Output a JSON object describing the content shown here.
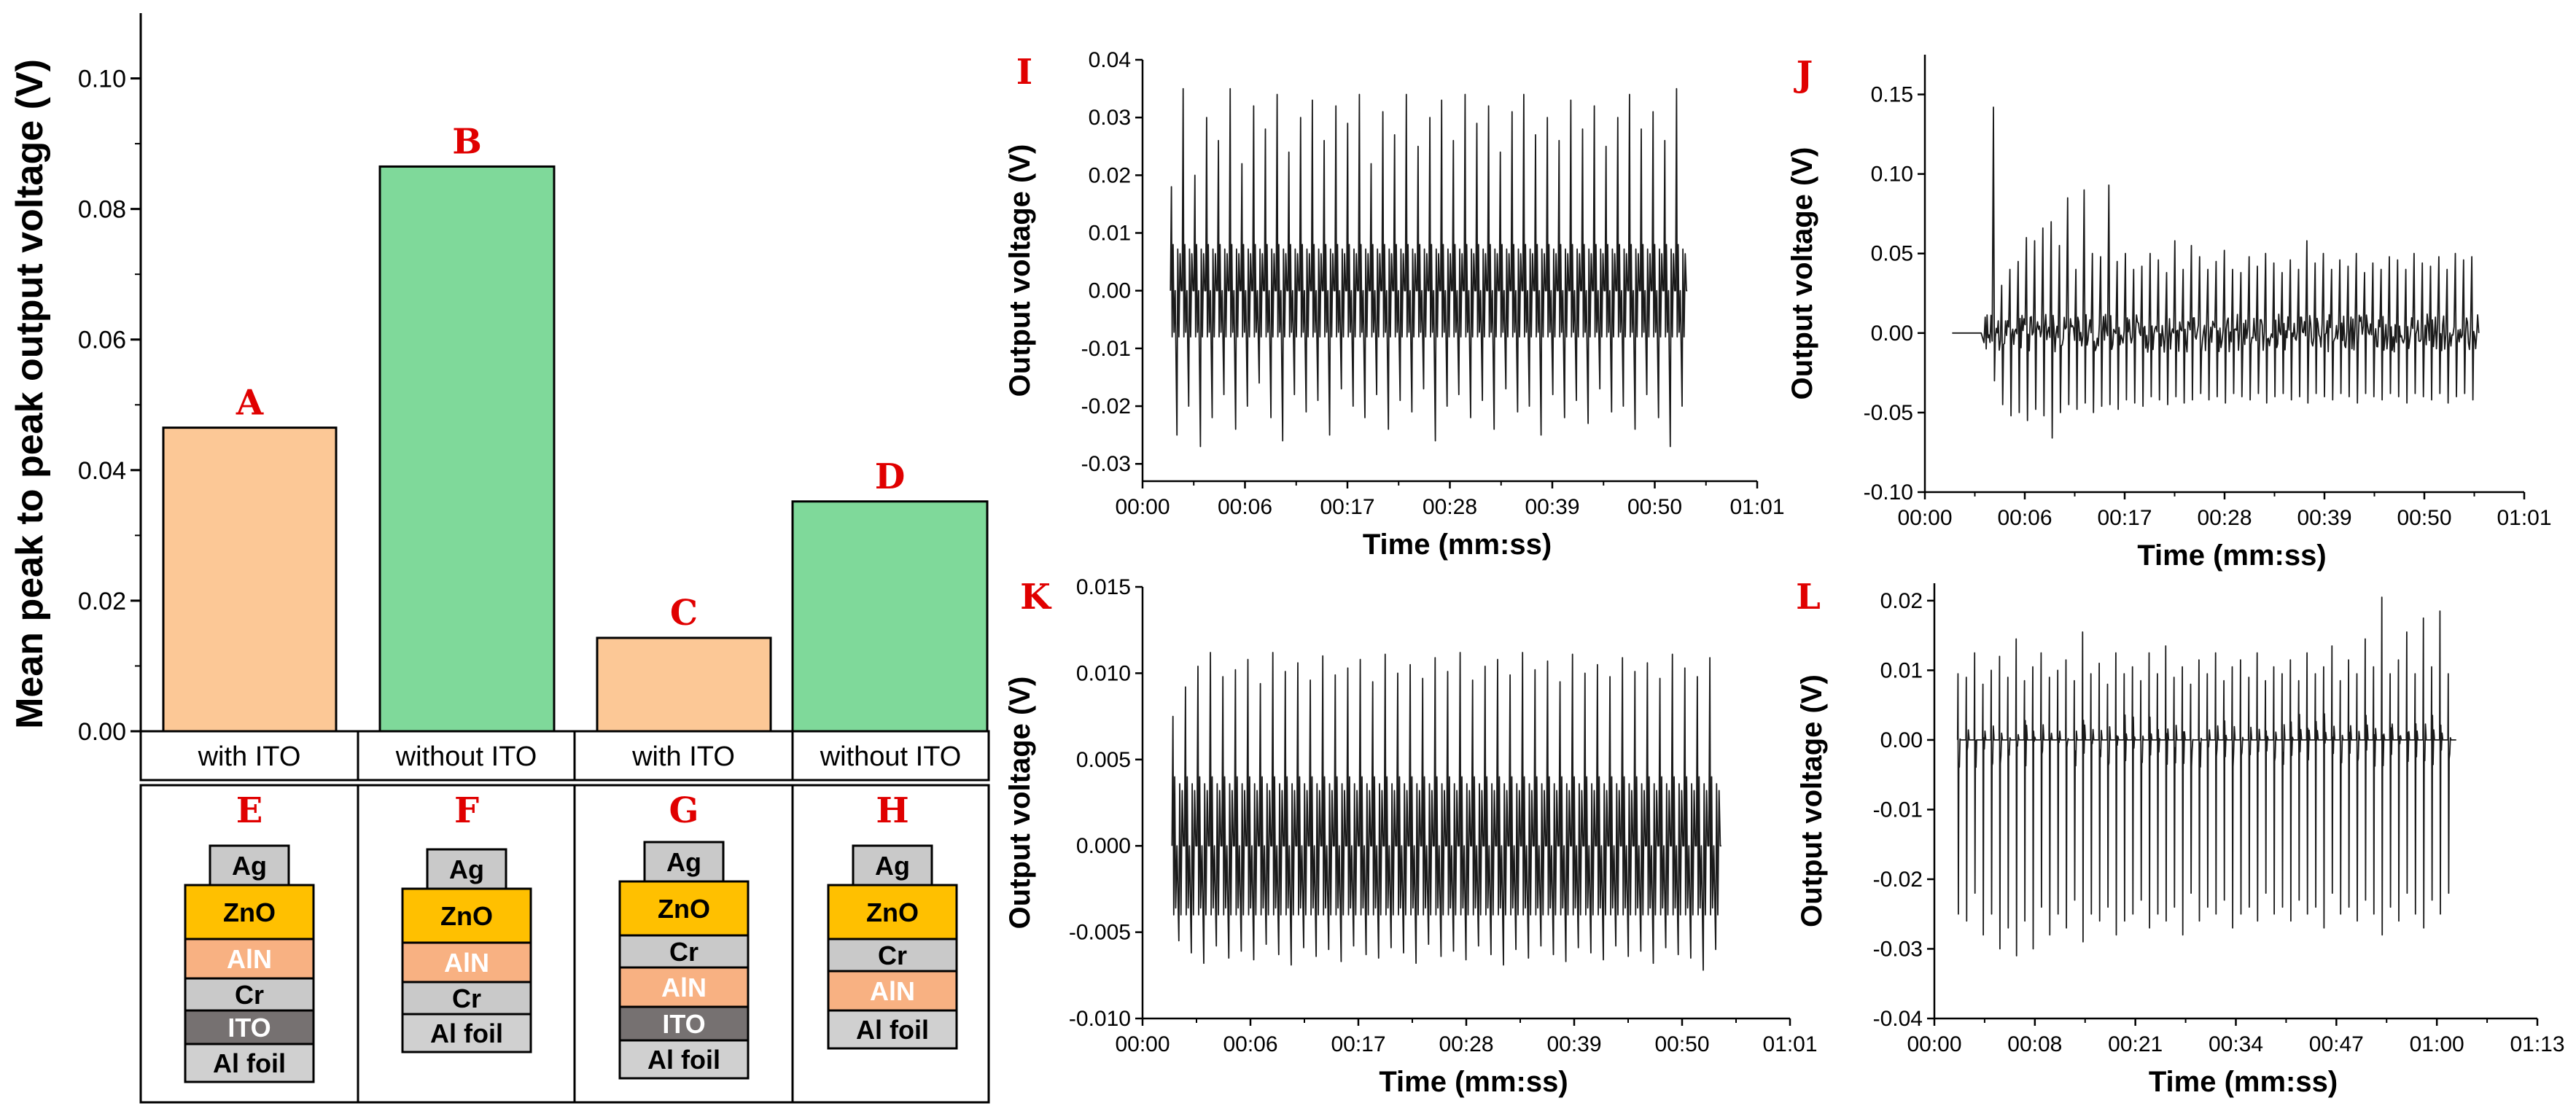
{
  "colors": {
    "orange": "#fcc896",
    "green": "#7fd99a",
    "red_label": "#e00000",
    "layer_Ag": "#c9c9c9",
    "layer_ZnO": "#ffc000",
    "layer_AlN": "#f8b182",
    "layer_Cr": "#c9c9c9",
    "layer_ITO": "#767171",
    "layer_Alfoil": "#d0d0d0",
    "signal": "#1a1a1a"
  },
  "chart_data": [
    {
      "id": "bar",
      "type": "bar",
      "title": "",
      "ylabel": "Mean peak to peak output voltage (V)",
      "xlabel": "",
      "ylim": [
        0,
        0.11
      ],
      "yticks": [
        "0.00",
        "0.02",
        "0.04",
        "0.06",
        "0.08",
        "0.10"
      ],
      "categories": [
        "with ITO",
        "without ITO",
        "with ITO",
        "without ITO"
      ],
      "values": [
        0.0465,
        0.0865,
        0.0143,
        0.0352
      ],
      "bar_letters": [
        "A",
        "B",
        "C",
        "D"
      ],
      "bar_colors": [
        "orange",
        "green",
        "orange",
        "green"
      ]
    },
    {
      "id": "I",
      "type": "line",
      "letter": "I",
      "xlabel": "Time (mm:ss)",
      "ylabel": "Output voltage (V)",
      "xticks": [
        "00:00",
        "00:06",
        "00:17",
        "00:28",
        "00:39",
        "00:50",
        "01:01"
      ],
      "yticks": [
        "-0.03",
        "-0.02",
        "-0.01",
        "0.00",
        "0.01",
        "0.02",
        "0.03",
        "0.04"
      ],
      "ylim": [
        -0.033,
        0.04
      ],
      "x_start": 3.0,
      "x_end": 58.5,
      "pulse_count": 44,
      "peaks_max": [
        0.018,
        0.035,
        0.02,
        0.03,
        0.026,
        0.035,
        0.022,
        0.032,
        0.028,
        0.034,
        0.024,
        0.03,
        0.033,
        0.026,
        0.032,
        0.029,
        0.034,
        0.022,
        0.031,
        0.027,
        0.034,
        0.025,
        0.03,
        0.033,
        0.026,
        0.034,
        0.029,
        0.032,
        0.024,
        0.031,
        0.034,
        0.027,
        0.03,
        0.026,
        0.033,
        0.028,
        0.032,
        0.025,
        0.03,
        0.034,
        0.028,
        0.031,
        0.026,
        0.035
      ],
      "peaks_min": [
        -0.025,
        -0.02,
        -0.027,
        -0.022,
        -0.018,
        -0.024,
        -0.02,
        -0.016,
        -0.022,
        -0.026,
        -0.018,
        -0.021,
        -0.019,
        -0.025,
        -0.017,
        -0.02,
        -0.022,
        -0.018,
        -0.024,
        -0.019,
        -0.021,
        -0.017,
        -0.026,
        -0.02,
        -0.018,
        -0.022,
        -0.019,
        -0.024,
        -0.017,
        -0.021,
        -0.02,
        -0.025,
        -0.018,
        -0.022,
        -0.019,
        -0.023,
        -0.017,
        -0.021,
        -0.02,
        -0.024,
        -0.018,
        -0.022,
        -0.027,
        -0.02
      ],
      "baseline": 0.0,
      "upper_band": 0.008,
      "lower_band": -0.008,
      "amplitude_drift": 0.0
    },
    {
      "id": "J",
      "type": "line",
      "letter": "J",
      "xlabel": "Time (mm:ss)",
      "ylabel": "Output voltage (V)",
      "xticks": [
        "00:00",
        "00:06",
        "00:17",
        "00:28",
        "00:39",
        "00:50",
        "01:01"
      ],
      "yticks": [
        "-0.10",
        "-0.05",
        "0.00",
        "0.05",
        "0.10",
        "0.15"
      ],
      "ylim": [
        -0.1,
        0.175
      ],
      "x_start": 3.0,
      "x_end": 61.0,
      "onset": 6.5,
      "pulse_count": 60,
      "peaks_max": [
        0.01,
        0.142,
        0.03,
        0.04,
        0.045,
        0.06,
        0.058,
        0.066,
        0.07,
        0.055,
        0.085,
        0.04,
        0.09,
        0.05,
        0.048,
        0.093,
        0.045,
        0.05,
        0.04,
        0.042,
        0.05,
        0.046,
        0.038,
        0.058,
        0.04,
        0.055,
        0.048,
        0.04,
        0.045,
        0.052,
        0.04,
        0.038,
        0.048,
        0.042,
        0.05,
        0.044,
        0.038,
        0.046,
        0.04,
        0.058,
        0.044,
        0.05,
        0.04,
        0.046,
        0.042,
        0.05,
        0.038,
        0.044,
        0.04,
        0.048,
        0.046,
        0.04,
        0.05,
        0.044,
        0.042,
        0.048,
        0.04,
        0.05,
        0.046,
        0.048
      ],
      "peaks_min": [
        -0.01,
        -0.03,
        -0.045,
        -0.052,
        -0.05,
        -0.055,
        -0.048,
        -0.052,
        -0.066,
        -0.05,
        -0.045,
        -0.048,
        -0.044,
        -0.05,
        -0.046,
        -0.045,
        -0.048,
        -0.042,
        -0.044,
        -0.046,
        -0.04,
        -0.042,
        -0.045,
        -0.04,
        -0.044,
        -0.042,
        -0.038,
        -0.042,
        -0.04,
        -0.044,
        -0.038,
        -0.04,
        -0.042,
        -0.038,
        -0.044,
        -0.04,
        -0.038,
        -0.042,
        -0.04,
        -0.044,
        -0.038,
        -0.04,
        -0.042,
        -0.038,
        -0.04,
        -0.044,
        -0.038,
        -0.04,
        -0.042,
        -0.038,
        -0.04,
        -0.044,
        -0.038,
        -0.04,
        -0.042,
        -0.038,
        -0.044,
        -0.04,
        -0.038,
        -0.042
      ],
      "baseline": 0.0,
      "upper_band": 0.012,
      "lower_band": -0.012,
      "noisy": true
    },
    {
      "id": "K",
      "type": "line",
      "letter": "K",
      "xlabel": "Time (mm:ss)",
      "ylabel": "Output voltage (V)",
      "xticks": [
        "00:00",
        "00:06",
        "00:17",
        "00:28",
        "00:39",
        "00:50",
        "01:01"
      ],
      "yticks": [
        "-0.010",
        "-0.005",
        "0.000",
        "0.005",
        "0.010",
        "0.015"
      ],
      "ylim": [
        -0.01,
        0.015
      ],
      "x_start": 3.0,
      "x_end": 59.0,
      "pulse_count": 44,
      "peaks_max": [
        0.0075,
        0.0092,
        0.0104,
        0.0112,
        0.0098,
        0.0102,
        0.0108,
        0.0094,
        0.0112,
        0.0101,
        0.0106,
        0.0096,
        0.011,
        0.0099,
        0.0103,
        0.0108,
        0.0095,
        0.0111,
        0.01,
        0.0105,
        0.0097,
        0.0109,
        0.0101,
        0.0112,
        0.0096,
        0.0104,
        0.0108,
        0.0099,
        0.0112,
        0.0102,
        0.0107,
        0.0095,
        0.0111,
        0.01,
        0.0105,
        0.0098,
        0.0109,
        0.0101,
        0.0106,
        0.0097,
        0.0111,
        0.0103,
        0.0098,
        0.0109
      ],
      "peaks_min": [
        -0.0055,
        -0.0062,
        -0.0068,
        -0.0058,
        -0.0065,
        -0.0061,
        -0.0066,
        -0.0057,
        -0.0063,
        -0.0069,
        -0.0059,
        -0.0064,
        -0.006,
        -0.0067,
        -0.0058,
        -0.0063,
        -0.0065,
        -0.0059,
        -0.0062,
        -0.0068,
        -0.0057,
        -0.0064,
        -0.0061,
        -0.0066,
        -0.0058,
        -0.0063,
        -0.0069,
        -0.006,
        -0.0065,
        -0.0058,
        -0.0063,
        -0.0067,
        -0.0059,
        -0.0062,
        -0.0066,
        -0.0058,
        -0.0064,
        -0.0061,
        -0.0068,
        -0.0059,
        -0.0063,
        -0.0065,
        -0.0072,
        -0.006
      ],
      "baseline": 0.0,
      "upper_band": 0.004,
      "lower_band": -0.004
    },
    {
      "id": "L",
      "type": "line",
      "letter": "L",
      "xlabel": "Time (mm:ss)",
      "ylabel": "Output voltage (V)",
      "xticks": [
        "00:00",
        "00:08",
        "00:21",
        "00:34",
        "00:47",
        "01:00",
        "01:13"
      ],
      "yticks": [
        "-0.04",
        "-0.03",
        "-0.02",
        "-0.01",
        "0.00",
        "0.01",
        "0.02"
      ],
      "ylim": [
        -0.04,
        0.0225
      ],
      "x_start": 3.0,
      "x_end": 67.5,
      "pulse_count": 60,
      "peaks_max": [
        0.0095,
        0.009,
        0.0125,
        0.008,
        0.01,
        0.012,
        0.009,
        0.0145,
        0.0085,
        0.0105,
        0.0125,
        0.009,
        0.01,
        0.0115,
        0.0085,
        0.0155,
        0.0095,
        0.011,
        0.008,
        0.0125,
        0.0095,
        0.0105,
        0.0085,
        0.0125,
        0.0095,
        0.0135,
        0.009,
        0.0105,
        0.008,
        0.0115,
        0.0095,
        0.0125,
        0.0085,
        0.0105,
        0.0115,
        0.009,
        0.0125,
        0.0085,
        0.0105,
        0.0095,
        0.0115,
        0.0085,
        0.0125,
        0.0095,
        0.0105,
        0.0135,
        0.0085,
        0.0115,
        0.0095,
        0.0145,
        0.0105,
        0.0205,
        0.0095,
        0.0115,
        0.0155,
        0.0095,
        0.0175,
        0.0105,
        0.0185,
        0.0095
      ],
      "peaks_min": [
        -0.025,
        -0.026,
        -0.022,
        -0.028,
        -0.025,
        -0.03,
        -0.027,
        -0.031,
        -0.026,
        -0.03,
        -0.024,
        -0.028,
        -0.025,
        -0.027,
        -0.023,
        -0.029,
        -0.025,
        -0.026,
        -0.024,
        -0.028,
        -0.026,
        -0.025,
        -0.023,
        -0.027,
        -0.025,
        -0.026,
        -0.024,
        -0.028,
        -0.022,
        -0.026,
        -0.024,
        -0.025,
        -0.023,
        -0.027,
        -0.025,
        -0.024,
        -0.026,
        -0.022,
        -0.025,
        -0.024,
        -0.026,
        -0.023,
        -0.025,
        -0.024,
        -0.027,
        -0.022,
        -0.025,
        -0.024,
        -0.026,
        -0.023,
        -0.025,
        -0.028,
        -0.024,
        -0.026,
        -0.022,
        -0.025,
        -0.027,
        -0.023,
        -0.025,
        -0.022
      ],
      "baseline": 0.0,
      "upper_band": 0.004,
      "lower_band": -0.004,
      "flat_baseline": true
    }
  ],
  "device_stacks": [
    {
      "letter": "E",
      "layers": [
        "Ag",
        "ZnO",
        "AlN",
        "Cr",
        "ITO",
        "Al foil"
      ]
    },
    {
      "letter": "F",
      "layers": [
        "Ag",
        "ZnO",
        "AlN",
        "Cr",
        "Al foil"
      ]
    },
    {
      "letter": "G",
      "layers": [
        "Ag",
        "ZnO",
        "Cr",
        "AlN",
        "ITO",
        "Al foil"
      ]
    },
    {
      "letter": "H",
      "layers": [
        "Ag",
        "ZnO",
        "Cr",
        "AlN",
        "Al foil"
      ]
    }
  ]
}
